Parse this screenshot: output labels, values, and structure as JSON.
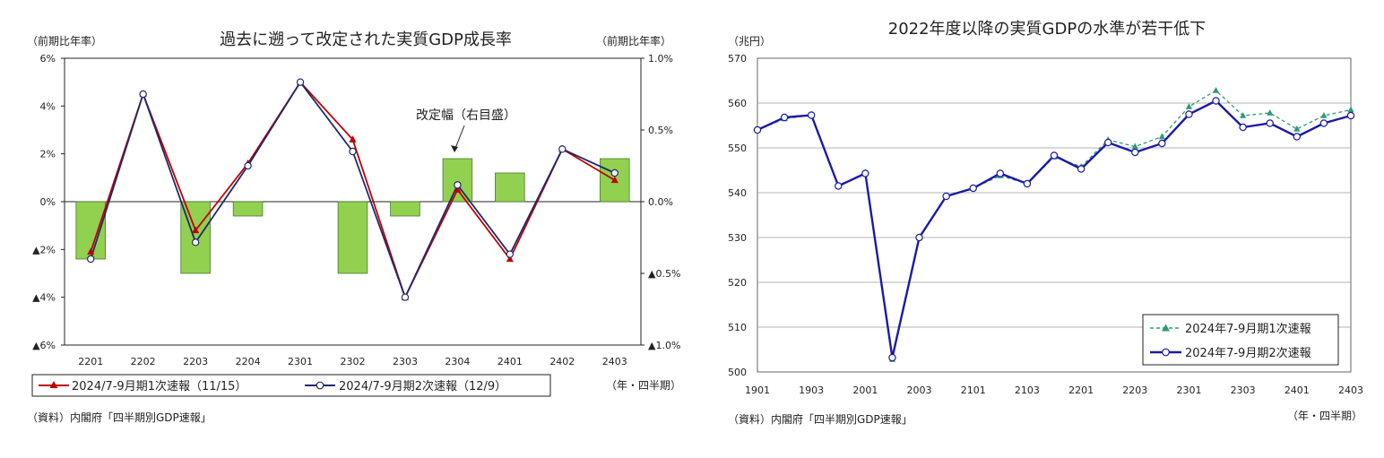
{
  "left": {
    "chart_data": {
      "type": "bar+line",
      "title": "過去に遡って改定された実質GDP成長率",
      "ylabel_left": "（前期比年率）",
      "ylabel_right": "（前期比年率）",
      "xlabel": "（年・四半期）",
      "source": "（資料）内閣府「四半期別GDP速報」",
      "annotation": "改定幅（右目盛）",
      "categories": [
        "2201",
        "2202",
        "2203",
        "2204",
        "2301",
        "2302",
        "2303",
        "2304",
        "2401",
        "2402",
        "2403"
      ],
      "ylim_left": [
        -6,
        6
      ],
      "ylim_right": [
        -1.0,
        1.0
      ],
      "yticks_left": [
        "6%",
        "4%",
        "2%",
        "0%",
        "▲2%",
        "▲4%",
        "▲6%"
      ],
      "yticks_right": [
        "1.0%",
        "0.5%",
        "0.0%",
        "▲0.5%",
        "▲1.0%"
      ],
      "bars": {
        "name": "改定幅（右目盛）",
        "axis": "right",
        "color": "#92d050",
        "values": [
          -0.4,
          0.0,
          -0.5,
          -0.1,
          0.0,
          -0.5,
          -0.1,
          0.3,
          0.2,
          0.0,
          0.3
        ]
      },
      "series": [
        {
          "name": "2024/7-9月期1次速報（11/15）",
          "color": "#c00000",
          "marker": "triangle",
          "values": [
            -2.1,
            4.5,
            -1.2,
            1.6,
            5.0,
            2.6,
            -4.0,
            0.5,
            -2.4,
            2.2,
            0.9
          ]
        },
        {
          "name": "2024/7-9月期2次速報（12/9）",
          "color": "#1f2a6b",
          "marker": "circle",
          "values": [
            -2.4,
            4.5,
            -1.7,
            1.5,
            5.0,
            2.1,
            -4.0,
            0.7,
            -2.2,
            2.2,
            1.2
          ]
        }
      ]
    }
  },
  "right": {
    "chart_data": {
      "type": "line",
      "title": "2022年度以降の実質GDPの水準が若干低下",
      "ylabel": "（兆円）",
      "xlabel": "（年・四半期）",
      "source": "（資料）内閣府「四半期別GDP速報」",
      "ylim": [
        500,
        570
      ],
      "yticks": [
        "570",
        "560",
        "550",
        "540",
        "530",
        "520",
        "510",
        "500"
      ],
      "xticks": [
        "1901",
        "1903",
        "2001",
        "2003",
        "2101",
        "2103",
        "2201",
        "2203",
        "2301",
        "2303",
        "2401",
        "2403"
      ],
      "x": [
        "1901",
        "1902",
        "1903",
        "1904",
        "2001",
        "2002",
        "2003",
        "2004",
        "2101",
        "2102",
        "2103",
        "2104",
        "2201",
        "2202",
        "2203",
        "2204",
        "2301",
        "2302",
        "2303",
        "2304",
        "2401",
        "2402",
        "2403"
      ],
      "series": [
        {
          "name": "2024年7-9月期1次速報",
          "color": "#2e9a7a",
          "style": "dashed",
          "marker": "triangle",
          "values": [
            554.0,
            556.5,
            557.3,
            541.5,
            544.5,
            502.8,
            530.0,
            539.2,
            541.0,
            543.8,
            542.0,
            548.0,
            545.8,
            551.8,
            550.3,
            552.5,
            559.2,
            562.8,
            557.2,
            557.8,
            554.2,
            557.2,
            558.5
          ]
        },
        {
          "name": "2024年7-9月期2次速報",
          "color": "#1a1aa8",
          "style": "solid",
          "marker": "circle",
          "values": [
            554.0,
            556.8,
            557.3,
            541.5,
            544.3,
            503.2,
            530.0,
            539.2,
            541.0,
            544.3,
            542.0,
            548.3,
            545.3,
            551.2,
            549.0,
            551.0,
            557.5,
            560.5,
            554.6,
            555.5,
            552.5,
            555.5,
            557.2
          ]
        }
      ]
    }
  }
}
